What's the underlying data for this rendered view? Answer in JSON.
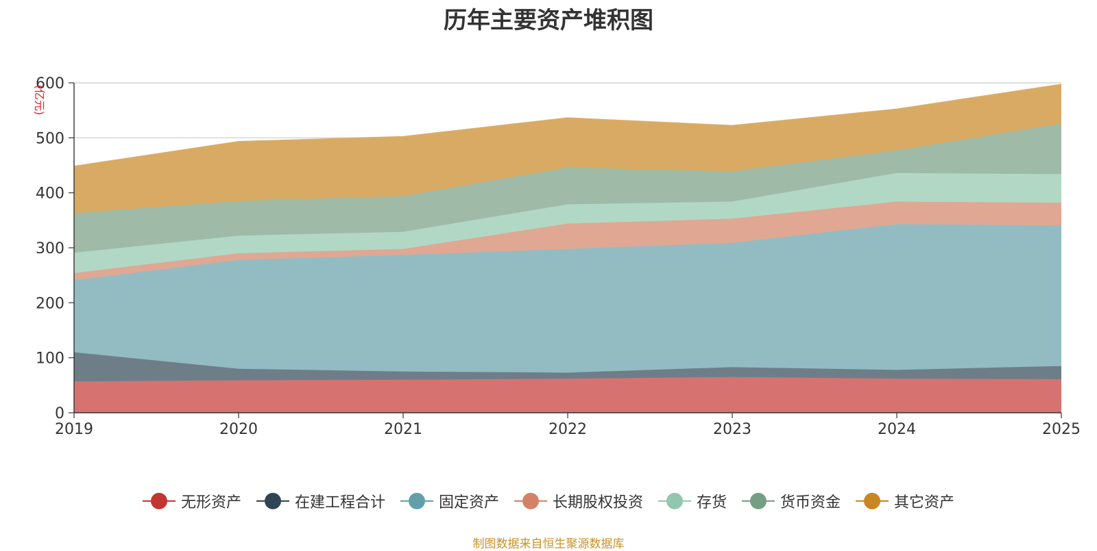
{
  "chart_data": {
    "type": "area",
    "stacked": true,
    "title": "历年主要资产堆积图",
    "ylabel": "亿元",
    "ylim": [
      0,
      600
    ],
    "yticks": [
      0,
      100,
      200,
      300,
      400,
      500,
      600
    ],
    "grid": true,
    "legend_position": "bottom",
    "categories": [
      "2019",
      "2020",
      "2021",
      "2022",
      "2023",
      "2024",
      "2025"
    ],
    "series": [
      {
        "name": "无形资产",
        "color": "#c23531",
        "fill": "#d67370",
        "values": [
          57,
          59,
          60,
          62,
          65,
          62,
          61
        ]
      },
      {
        "name": "在建工程合计",
        "color": "#2f4554",
        "fill": "#6e7e89",
        "values": [
          53,
          21,
          15,
          11,
          18,
          16,
          24
        ]
      },
      {
        "name": "固定资产",
        "color": "#61a0a8",
        "fill": "#92bcc2",
        "values": [
          131,
          198,
          212,
          225,
          226,
          265,
          256
        ]
      },
      {
        "name": "长期股权投资",
        "color": "#d48265",
        "fill": "#e0a793",
        "values": [
          13,
          12,
          11,
          46,
          44,
          41,
          41
        ]
      },
      {
        "name": "存货",
        "color": "#91c7ae",
        "fill": "#b1d8c5",
        "values": [
          37,
          32,
          31,
          35,
          31,
          52,
          52
        ]
      },
      {
        "name": "货币资金",
        "color": "#749f83",
        "fill": "#9fbaa6",
        "values": [
          72,
          63,
          65,
          67,
          55,
          41,
          92
        ]
      },
      {
        "name": "其它资产",
        "color": "#ca8622",
        "fill": "#d8aa64",
        "values": [
          85,
          108,
          108,
          90,
          83,
          75,
          71
        ]
      }
    ]
  },
  "source_note": "制图数据来自恒生聚源数据库"
}
